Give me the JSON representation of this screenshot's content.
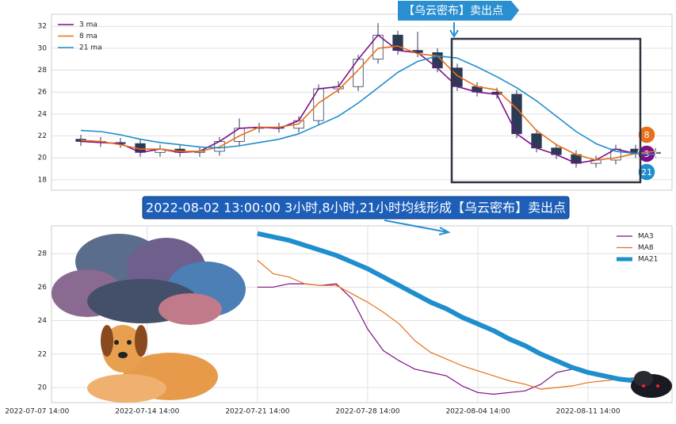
{
  "chart_data": [
    {
      "type": "candlestick",
      "annotation": "【乌云密布】卖出点",
      "ylim": [
        17.05,
        33.1
      ],
      "yticks": [
        18,
        20,
        22,
        24,
        26,
        28,
        30,
        32
      ],
      "grid": true,
      "legend": "upper left",
      "candles": {
        "open": [
          21.7,
          21.5,
          21.4,
          21.3,
          20.5,
          20.8,
          20.5,
          20.6,
          21.5,
          22.7,
          22.8,
          22.7,
          23.4,
          26.3,
          26.5,
          29.0,
          31.2,
          29.8,
          29.6,
          28.2,
          26.5,
          26.0,
          25.8,
          22.2,
          20.9,
          20.3,
          19.5,
          19.8,
          20.8,
          20.4
        ],
        "high": [
          22.1,
          21.9,
          21.8,
          21.7,
          21.2,
          21.2,
          21.0,
          21.9,
          23.6,
          23.2,
          23.2,
          23.8,
          26.7,
          27.0,
          29.4,
          32.3,
          31.6,
          31.5,
          30.0,
          28.6,
          26.9,
          26.4,
          26.2,
          22.6,
          21.3,
          20.7,
          20.2,
          21.2,
          21.2,
          20.9
        ],
        "low": [
          21.1,
          21.0,
          20.9,
          20.1,
          20.1,
          20.1,
          20.1,
          20.2,
          21.1,
          22.3,
          22.3,
          22.3,
          23.0,
          25.9,
          26.1,
          28.6,
          29.4,
          29.2,
          27.8,
          26.1,
          25.6,
          25.4,
          21.8,
          20.5,
          19.9,
          19.1,
          19.1,
          19.4,
          20.0,
          20.0
        ],
        "close": [
          21.5,
          21.4,
          21.3,
          20.5,
          20.8,
          20.5,
          20.6,
          21.5,
          22.7,
          22.8,
          22.7,
          23.4,
          26.3,
          26.5,
          29.0,
          31.2,
          29.8,
          29.6,
          28.2,
          26.5,
          26.0,
          25.8,
          22.2,
          20.9,
          20.3,
          19.5,
          19.8,
          20.8,
          20.4,
          20.5
        ]
      },
      "series": [
        {
          "name": "3 ma",
          "label": 3,
          "color": "#7d0f8a",
          "width": 1.6,
          "values": [
            21.5,
            21.4,
            21.3,
            20.5,
            20.8,
            20.5,
            20.6,
            21.5,
            22.7,
            22.8,
            22.7,
            23.4,
            26.3,
            26.5,
            29.0,
            31.2,
            29.8,
            29.6,
            28.2,
            26.5,
            26.0,
            25.8,
            22.2,
            20.9,
            20.3,
            19.5,
            19.8,
            20.8,
            20.4,
            20.5
          ]
        },
        {
          "name": "8 ma",
          "label": 8,
          "color": "#e8701a",
          "width": 1.6,
          "values": [
            21.6,
            21.5,
            21.2,
            20.8,
            20.8,
            20.6,
            20.6,
            21.0,
            22.0,
            22.8,
            22.8,
            23.1,
            25.0,
            26.2,
            28.0,
            30.0,
            30.2,
            29.5,
            29.3,
            27.5,
            26.5,
            26.2,
            24.5,
            22.5,
            21.2,
            20.3,
            19.8,
            20.0,
            20.4,
            20.6
          ]
        },
        {
          "name": "21 ma",
          "label": 21,
          "color": "#1f8ecd",
          "width": 1.6,
          "values": [
            22.5,
            22.4,
            22.1,
            21.7,
            21.4,
            21.2,
            21.0,
            20.9,
            21.1,
            21.4,
            21.7,
            22.2,
            23.0,
            23.8,
            25.0,
            26.4,
            27.8,
            28.8,
            29.3,
            29.1,
            28.3,
            27.4,
            26.4,
            25.2,
            23.8,
            22.4,
            21.3,
            20.6,
            20.4,
            20.3
          ]
        }
      ]
    },
    {
      "type": "line",
      "annotation": "2022-08-02 13:00:00 3小时,8小时,21小时均线形成【乌云密布】卖出点",
      "ylim": [
        19.1,
        29.66
      ],
      "yticks": [
        20,
        22,
        24,
        26,
        28
      ],
      "xlim": [
        "2022-07-08 12:00",
        "2022-08-16 22:00"
      ],
      "xticks": [
        "2022-07-07 14:00",
        "2022-07-14 14:00",
        "2022-07-21 14:00",
        "2022-07-28 14:00",
        "2022-08-04 14:00",
        "2022-08-11 14:00"
      ],
      "grid": true,
      "legend": "upper right",
      "x": [
        "2022-07-21 14:00",
        "2022-07-22 14:00",
        "2022-07-23 14:00",
        "2022-07-24 14:00",
        "2022-07-25 14:00",
        "2022-07-26 14:00",
        "2022-07-27 14:00",
        "2022-07-28 14:00",
        "2022-07-29 14:00",
        "2022-07-30 14:00",
        "2022-07-31 14:00",
        "2022-08-01 14:00",
        "2022-08-02 14:00",
        "2022-08-03 14:00",
        "2022-08-04 14:00",
        "2022-08-05 14:00",
        "2022-08-06 14:00",
        "2022-08-07 14:00",
        "2022-08-08 14:00",
        "2022-08-09 14:00",
        "2022-08-10 14:00",
        "2022-08-11 14:00",
        "2022-08-12 14:00",
        "2022-08-13 14:00",
        "2022-08-14 14:00",
        "2022-08-15 14:00"
      ],
      "series": [
        {
          "name": "MA3",
          "color": "#7d0f8a",
          "width": 1.2,
          "values": [
            26.0,
            26.0,
            26.2,
            26.2,
            26.1,
            26.2,
            25.3,
            23.5,
            22.2,
            21.6,
            21.1,
            20.9,
            20.7,
            20.1,
            19.7,
            19.6,
            19.7,
            19.8,
            20.2,
            20.9,
            21.1,
            20.9,
            20.8,
            20.6,
            20.5,
            20.5
          ]
        },
        {
          "name": "MA8",
          "color": "#e8701a",
          "width": 1.2,
          "values": [
            27.6,
            26.8,
            26.6,
            26.2,
            26.1,
            26.1,
            25.6,
            25.1,
            24.5,
            23.8,
            22.8,
            22.1,
            21.7,
            21.3,
            21.0,
            20.7,
            20.4,
            20.2,
            19.9,
            20.0,
            20.1,
            20.3,
            20.4,
            20.5,
            20.6,
            20.6
          ]
        },
        {
          "name": "MA21",
          "color": "#1f8ecd",
          "width": 6,
          "values": [
            29.2,
            29.0,
            28.8,
            28.5,
            28.2,
            27.9,
            27.5,
            27.1,
            26.6,
            26.1,
            25.6,
            25.1,
            24.7,
            24.2,
            23.8,
            23.4,
            22.9,
            22.5,
            22.0,
            21.6,
            21.2,
            20.9,
            20.7,
            20.5,
            20.4,
            20.3
          ]
        }
      ]
    }
  ]
}
